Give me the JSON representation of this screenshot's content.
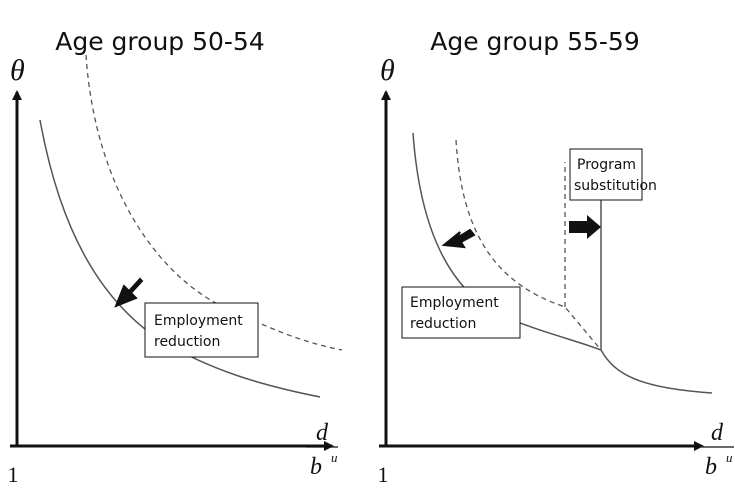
{
  "panels": [
    {
      "title": "Age group 50-54",
      "y_label": "θ",
      "x_label_num": "d",
      "x_label_den": "b",
      "x_label_sup": "u",
      "origin": "1",
      "annotations": [
        {
          "lines": [
            "Employment",
            "reduction"
          ]
        }
      ]
    },
    {
      "title": "Age group 55-59",
      "y_label": "θ",
      "x_label_num": "d",
      "x_label_den": "b",
      "x_label_sup": "u",
      "origin": "1",
      "annotations": [
        {
          "lines": [
            "Program",
            "substitution"
          ]
        },
        {
          "lines": [
            "Employment",
            "reduction"
          ]
        }
      ]
    }
  ]
}
